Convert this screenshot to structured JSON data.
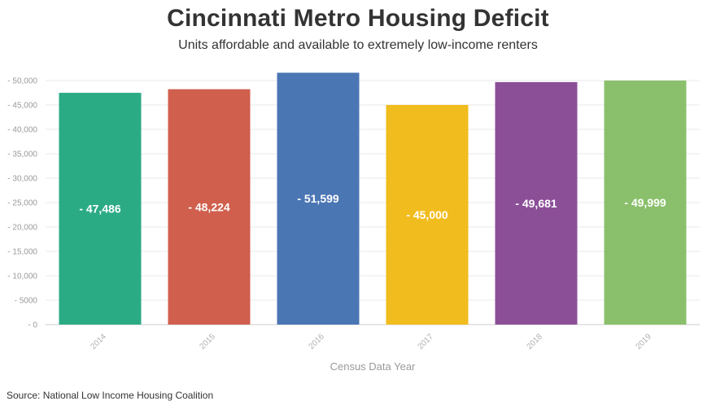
{
  "title": "Cincinnati Metro Housing Deficit",
  "subtitle": "Units affordable and available to extremely low-income renters",
  "source": "Source: National Low Income Housing Coalition",
  "chart_data": {
    "type": "bar",
    "title": "Cincinnati Metro Housing Deficit",
    "subtitle": "Units affordable and available to extremely low-income renters",
    "xlabel": "Census Data Year",
    "ylabel": "",
    "categories": [
      "2014",
      "2015",
      "2016",
      "2017",
      "2018",
      "2019"
    ],
    "values": [
      -47486,
      -48224,
      -51599,
      -45000,
      -49681,
      -49999
    ],
    "data_labels": [
      "- 47,486",
      "- 48,224",
      "- 51,599",
      "- 45,000",
      "- 49,681",
      "- 49,999"
    ],
    "colors": [
      "#2bab84",
      "#d05f4d",
      "#4b76b4",
      "#f1bc1d",
      "#8b4f98",
      "#8ac06b"
    ],
    "y_ticks": [
      0,
      -5000,
      -10000,
      -15000,
      -20000,
      -25000,
      -30000,
      -35000,
      -40000,
      -45000,
      -50000
    ],
    "y_tick_labels": [
      "- 0",
      "- 5000",
      "- 10,000",
      "- 15,000",
      "- 20,000",
      "- 25,000",
      "- 30,000",
      "- 35,000",
      "- 40,000",
      "- 45,000",
      "- 50,000"
    ],
    "ylim": [
      0,
      -52000
    ],
    "grid": true,
    "legend": "none"
  }
}
